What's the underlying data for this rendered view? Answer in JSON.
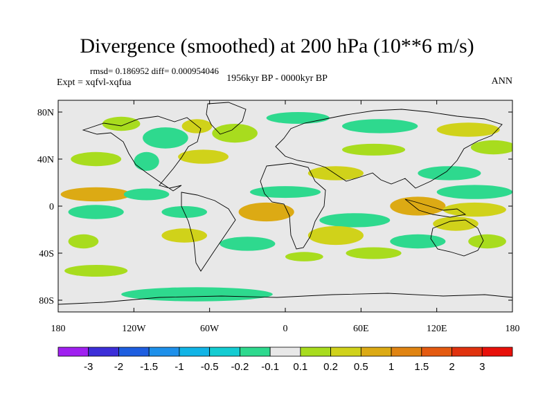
{
  "chart_data": {
    "type": "heatmap",
    "title": "Divergence (smoothed) at 200 hPa (10**6 m/s)",
    "stats": "rmsd= 0.186952 diff= 0.000954046",
    "experiment": "Expt = xqfvl-xqfua",
    "period": "1956kyr BP - 0000kyr BP",
    "season": "ANN",
    "x_ticks": [
      "180",
      "120W",
      "60W",
      "0",
      "60E",
      "120E",
      "180"
    ],
    "y_ticks": [
      "80N",
      "40N",
      "0",
      "40S",
      "80S"
    ],
    "xlim": [
      -180,
      180
    ],
    "ylim": [
      -90,
      90
    ],
    "colorbar": {
      "labels": [
        "-3",
        "-2",
        "-1.5",
        "-1",
        "-0.5",
        "-0.2",
        "-0.1",
        "0.1",
        "0.2",
        "0.5",
        "1",
        "1.5",
        "2",
        "3"
      ],
      "colors": [
        "#a020f0",
        "#3c2ed8",
        "#1e5ee0",
        "#1e90ea",
        "#11b4e6",
        "#14ccd2",
        "#2ed98e",
        "#e8e8e8",
        "#a8dc1e",
        "#d0d21a",
        "#dcaa14",
        "#e08412",
        "#e45a10",
        "#e0320e",
        "#e8100a"
      ]
    },
    "features": [
      {
        "lon": -130,
        "lat": 70,
        "rx": 15,
        "ry": 6,
        "value": 0.15
      },
      {
        "lon": -95,
        "lat": 58,
        "rx": 18,
        "ry": 9,
        "value": -0.15
      },
      {
        "lon": -70,
        "lat": 68,
        "rx": 12,
        "ry": 6,
        "value": 0.2
      },
      {
        "lon": -40,
        "lat": 62,
        "rx": 18,
        "ry": 8,
        "value": 0.15
      },
      {
        "lon": 10,
        "lat": 75,
        "rx": 25,
        "ry": 5,
        "value": -0.15
      },
      {
        "lon": 75,
        "lat": 68,
        "rx": 30,
        "ry": 6,
        "value": -0.15
      },
      {
        "lon": 145,
        "lat": 65,
        "rx": 25,
        "ry": 6,
        "value": 0.2
      },
      {
        "lon": 70,
        "lat": 48,
        "rx": 25,
        "ry": 5,
        "value": 0.15
      },
      {
        "lon": 165,
        "lat": 50,
        "rx": 18,
        "ry": 6,
        "value": 0.15
      },
      {
        "lon": -150,
        "lat": 40,
        "rx": 20,
        "ry": 6,
        "value": 0.15
      },
      {
        "lon": -110,
        "lat": 38,
        "rx": 10,
        "ry": 8,
        "value": -0.15
      },
      {
        "lon": -65,
        "lat": 42,
        "rx": 20,
        "ry": 6,
        "value": 0.3
      },
      {
        "lon": 40,
        "lat": 28,
        "rx": 22,
        "ry": 6,
        "value": 0.3
      },
      {
        "lon": 130,
        "lat": 28,
        "rx": 25,
        "ry": 6,
        "value": -0.15
      },
      {
        "lon": -150,
        "lat": 10,
        "rx": 28,
        "ry": 6,
        "value": 0.6
      },
      {
        "lon": -110,
        "lat": 10,
        "rx": 18,
        "ry": 5,
        "value": -0.15
      },
      {
        "lon": 0,
        "lat": 12,
        "rx": 28,
        "ry": 5,
        "value": -0.15
      },
      {
        "lon": 150,
        "lat": 12,
        "rx": 30,
        "ry": 6,
        "value": -0.15
      },
      {
        "lon": 105,
        "lat": 0,
        "rx": 22,
        "ry": 8,
        "value": 0.6
      },
      {
        "lon": 150,
        "lat": -3,
        "rx": 25,
        "ry": 6,
        "value": 0.3
      },
      {
        "lon": -150,
        "lat": -5,
        "rx": 22,
        "ry": 6,
        "value": -0.15
      },
      {
        "lon": -80,
        "lat": -5,
        "rx": 18,
        "ry": 5,
        "value": -0.15
      },
      {
        "lon": -15,
        "lat": -5,
        "rx": 22,
        "ry": 8,
        "value": 0.6
      },
      {
        "lon": 55,
        "lat": -12,
        "rx": 28,
        "ry": 6,
        "value": -0.15
      },
      {
        "lon": 40,
        "lat": -25,
        "rx": 22,
        "ry": 8,
        "value": 0.3
      },
      {
        "lon": -80,
        "lat": -25,
        "rx": 18,
        "ry": 6,
        "value": 0.3
      },
      {
        "lon": -30,
        "lat": -32,
        "rx": 22,
        "ry": 6,
        "value": -0.15
      },
      {
        "lon": 105,
        "lat": -30,
        "rx": 22,
        "ry": 6,
        "value": -0.15
      },
      {
        "lon": 135,
        "lat": -15,
        "rx": 18,
        "ry": 6,
        "value": 0.3
      },
      {
        "lon": 160,
        "lat": -30,
        "rx": 15,
        "ry": 6,
        "value": 0.15
      },
      {
        "lon": -160,
        "lat": -30,
        "rx": 12,
        "ry": 6,
        "value": 0.15
      },
      {
        "lon": 70,
        "lat": -40,
        "rx": 22,
        "ry": 5,
        "value": 0.15
      },
      {
        "lon": 15,
        "lat": -43,
        "rx": 15,
        "ry": 4,
        "value": 0.15
      },
      {
        "lon": -70,
        "lat": -75,
        "rx": 60,
        "ry": 6,
        "value": -0.15
      },
      {
        "lon": -150,
        "lat": -55,
        "rx": 25,
        "ry": 5,
        "value": 0.15
      }
    ]
  }
}
